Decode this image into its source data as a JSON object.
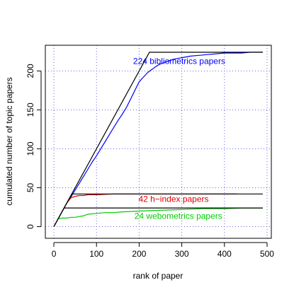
{
  "chart_data": {
    "type": "line",
    "xlabel": "rank of paper",
    "ylabel": "cumulated  number of topic papers",
    "xlim": [
      -20,
      510
    ],
    "ylim": [
      -15,
      233
    ],
    "x_ticks": [
      0,
      100,
      200,
      300,
      400,
      500
    ],
    "y_ticks": [
      0,
      50,
      100,
      150,
      200
    ],
    "grid": true,
    "grid_style": "dotted",
    "grid_color": "#6666dd",
    "annotations": [
      {
        "text": "224 bibliometrics papers",
        "x": 402,
        "y": 209,
        "color": "#0000ff"
      },
      {
        "text": "42 h−index papers",
        "x": 363,
        "y": 32,
        "color": "#dd0000"
      },
      {
        "text": "24 webometrics papers",
        "x": 395,
        "y": 10,
        "color": "#00cc00"
      }
    ],
    "series": [
      {
        "color": "#0000ff",
        "kind": "observed",
        "x": [
          0,
          10,
          20,
          30,
          40,
          50,
          60,
          70,
          80,
          90,
          100,
          110,
          120,
          130,
          140,
          150,
          160,
          170,
          180,
          190,
          200,
          210,
          220,
          230,
          240,
          250,
          260,
          270,
          280,
          290,
          300,
          320,
          340,
          360,
          380,
          400,
          420,
          440,
          460,
          480,
          490
        ],
        "y": [
          0,
          10,
          20,
          30,
          38,
          47,
          56,
          65,
          74,
          83,
          91,
          100,
          109,
          118,
          127,
          136,
          144,
          153,
          164,
          175,
          186,
          192,
          198,
          202,
          206,
          209,
          211,
          213,
          215,
          216,
          217,
          219,
          220,
          221,
          222,
          223,
          223,
          223,
          224,
          224,
          224
        ]
      },
      {
        "color": "#000000",
        "kind": "ideal",
        "x": [
          0,
          224,
          490
        ],
        "y": [
          0,
          224,
          224
        ]
      },
      {
        "color": "#dd0000",
        "kind": "observed",
        "x": [
          0,
          10,
          20,
          30,
          40,
          50,
          60,
          70,
          80,
          90,
          100,
          140,
          200,
          300,
          430
        ],
        "y": [
          0,
          10,
          20,
          30,
          37,
          39,
          40,
          40,
          41,
          41,
          41,
          42,
          42,
          42,
          42
        ]
      },
      {
        "color": "#000000",
        "kind": "ideal",
        "x": [
          0,
          42,
          490
        ],
        "y": [
          0,
          42,
          42
        ]
      },
      {
        "color": "#00cc00",
        "kind": "observed",
        "x": [
          0,
          10,
          20,
          30,
          40,
          50,
          60,
          70,
          80,
          100,
          120,
          140,
          160,
          200,
          250,
          300,
          350,
          400,
          440,
          490
        ],
        "y": [
          0,
          10,
          11,
          11,
          12,
          12,
          13,
          14,
          16,
          17,
          18,
          18,
          19,
          20,
          21,
          22,
          23,
          23,
          24,
          24
        ]
      },
      {
        "color": "#000000",
        "kind": "ideal",
        "x": [
          0,
          24,
          490
        ],
        "y": [
          0,
          24,
          24
        ]
      }
    ]
  }
}
